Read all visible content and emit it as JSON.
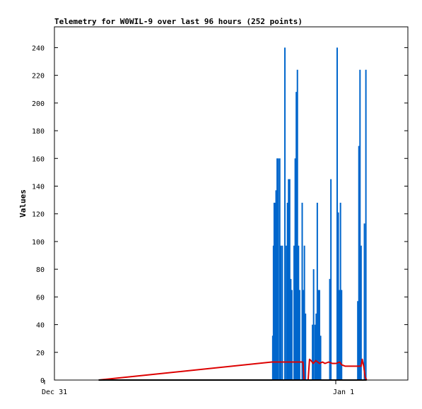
{
  "chart_data": {
    "type": "line",
    "title": "Telemetry for W0WIL-9 over last 96 hours (252 points)",
    "xlabel": "",
    "ylabel": "Values",
    "x_tick_labels": [
      "Dec 31",
      "Jan 1"
    ],
    "ylim": [
      0,
      255
    ],
    "y_ticks": [
      0,
      20,
      40,
      60,
      80,
      100,
      120,
      140,
      160,
      180,
      200,
      220,
      240
    ],
    "grid": false,
    "series": [
      {
        "name": "",
        "color": "#0066cc",
        "style": "impulse",
        "points": [
          [
            59.3,
            32
          ],
          [
            59.5,
            97
          ],
          [
            59.7,
            128
          ],
          [
            60.0,
            128
          ],
          [
            60.2,
            137
          ],
          [
            60.5,
            160
          ],
          [
            60.8,
            160
          ],
          [
            61.2,
            160
          ],
          [
            61.5,
            97
          ],
          [
            61.9,
            97
          ],
          [
            62.3,
            0
          ],
          [
            62.6,
            240
          ],
          [
            63.0,
            97
          ],
          [
            63.3,
            128
          ],
          [
            63.6,
            145
          ],
          [
            63.9,
            145
          ],
          [
            64.2,
            73
          ],
          [
            64.5,
            65
          ],
          [
            64.8,
            0
          ],
          [
            65.1,
            97
          ],
          [
            65.4,
            160
          ],
          [
            65.7,
            208
          ],
          [
            66.0,
            224
          ],
          [
            66.3,
            97
          ],
          [
            66.6,
            65
          ],
          [
            67.0,
            0
          ],
          [
            67.3,
            128
          ],
          [
            67.6,
            65
          ],
          [
            67.9,
            97
          ],
          [
            68.2,
            48
          ],
          [
            69.8,
            0
          ],
          [
            70.1,
            40
          ],
          [
            70.4,
            80
          ],
          [
            70.8,
            40
          ],
          [
            71.1,
            48
          ],
          [
            71.4,
            128
          ],
          [
            71.7,
            65
          ],
          [
            72.0,
            65
          ],
          [
            72.3,
            32
          ],
          [
            74.8,
            73
          ],
          [
            75.1,
            145
          ],
          [
            76.8,
            240
          ],
          [
            77.1,
            121
          ],
          [
            77.4,
            65
          ],
          [
            77.7,
            128
          ],
          [
            78.0,
            65
          ],
          [
            82.4,
            57
          ],
          [
            82.7,
            169
          ],
          [
            83.0,
            224
          ],
          [
            83.3,
            97
          ],
          [
            84.2,
            113
          ],
          [
            84.6,
            224
          ]
        ]
      },
      {
        "name": "",
        "color": "#dd0000",
        "style": "line",
        "points": [
          [
            12,
            0
          ],
          [
            59,
            13
          ],
          [
            67.5,
            13
          ],
          [
            67.8,
            0
          ],
          [
            68.6,
            0
          ],
          [
            68.9,
            0
          ],
          [
            69.3,
            15
          ],
          [
            69.7,
            14
          ],
          [
            70.3,
            12
          ],
          [
            71.0,
            14
          ],
          [
            72.0,
            12
          ],
          [
            72.8,
            13
          ],
          [
            73.5,
            12
          ],
          [
            74.5,
            13
          ],
          [
            75.5,
            12
          ],
          [
            76.5,
            12
          ],
          [
            77.5,
            13
          ],
          [
            78.0,
            11
          ],
          [
            79.0,
            10
          ],
          [
            81.0,
            10
          ],
          [
            82.5,
            10
          ],
          [
            83.3,
            10
          ],
          [
            83.6,
            15
          ],
          [
            84.0,
            10
          ],
          [
            84.4,
            2
          ],
          [
            84.8,
            0
          ]
        ]
      },
      {
        "name": "",
        "color": "#000000",
        "style": "line",
        "points": [
          [
            12,
            0
          ],
          [
            84.8,
            0
          ]
        ]
      }
    ]
  }
}
